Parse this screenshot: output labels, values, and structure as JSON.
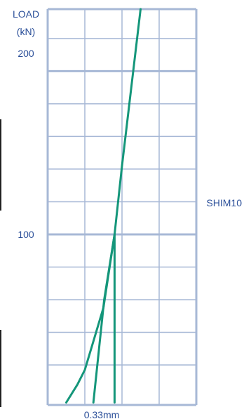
{
  "colors": {
    "grid": "#a7b8d6",
    "curve": "#14967a",
    "text": "#2b4f99",
    "edge": "#222222"
  },
  "chart_data": {
    "type": "line",
    "title": "",
    "ylabel_line1": "LOAD",
    "ylabel_line2": "(kN)",
    "yticks": [
      {
        "value": 200,
        "label": "200"
      },
      {
        "value": 100,
        "label": "100"
      }
    ],
    "ylim": [
      -4.5,
      238
    ],
    "xlim": [
      0,
      4
    ],
    "grid": true,
    "series_label": "SHIM10",
    "annotation": "0.33mm",
    "series": [
      {
        "values": [
          {
            "x": 0.5,
            "y": -3
          },
          {
            "x": 0.8,
            "y": 8
          },
          {
            "x": 1.0,
            "y": 17
          },
          {
            "x": 1.5,
            "y": 55
          },
          {
            "x": 1.8,
            "y": 100
          },
          {
            "x": 2.0,
            "y": 142
          },
          {
            "x": 2.5,
            "y": 238
          }
        ]
      },
      {
        "values": [
          {
            "x": 1.23,
            "y": -3
          },
          {
            "x": 1.52,
            "y": 60
          },
          {
            "x": 1.8,
            "y": 100
          },
          {
            "x": 1.8,
            "y": -3
          }
        ]
      }
    ]
  }
}
